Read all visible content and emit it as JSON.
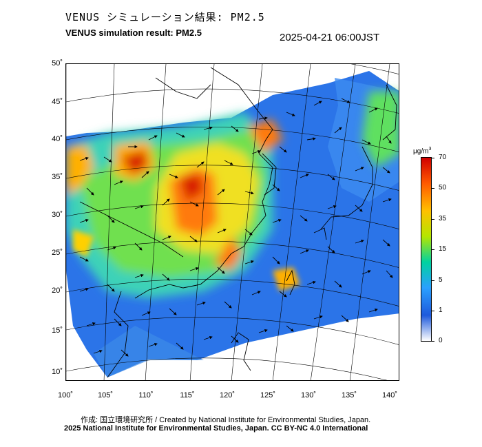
{
  "header": {
    "title_jp": "VENUS シミュレーション結果: PM2.5",
    "title_en": "VENUS simulation result: PM2.5",
    "datetime": "2025-04-21 06:00JST"
  },
  "map": {
    "lat_labels": [
      "50˚",
      "45˚",
      "40˚",
      "35˚",
      "30˚",
      "25˚",
      "20˚",
      "15˚",
      "10˚"
    ],
    "lon_labels": [
      "100˚",
      "105˚",
      "110˚",
      "115˚",
      "120˚",
      "125˚",
      "130˚",
      "135˚",
      "140˚"
    ]
  },
  "colorbar": {
    "unit_base": "μg/m",
    "unit_sup": "3",
    "ticks": [
      "70",
      "50",
      "35",
      "15",
      "5",
      "1",
      "0"
    ],
    "colors": [
      "#d00000",
      "#ff5a00",
      "#ffc000",
      "#b4e600",
      "#00d2a0",
      "#2aa0ff",
      "#1e5adc",
      "#ffffff"
    ]
  },
  "footer": {
    "credit_line": "作成: 国立環境研究所 / Created by National Institute for Environmental Studies, Japan.",
    "license_line": "2025 National Institute for Environmental Studies, Japan. CC BY-NC 4.0 International"
  }
}
